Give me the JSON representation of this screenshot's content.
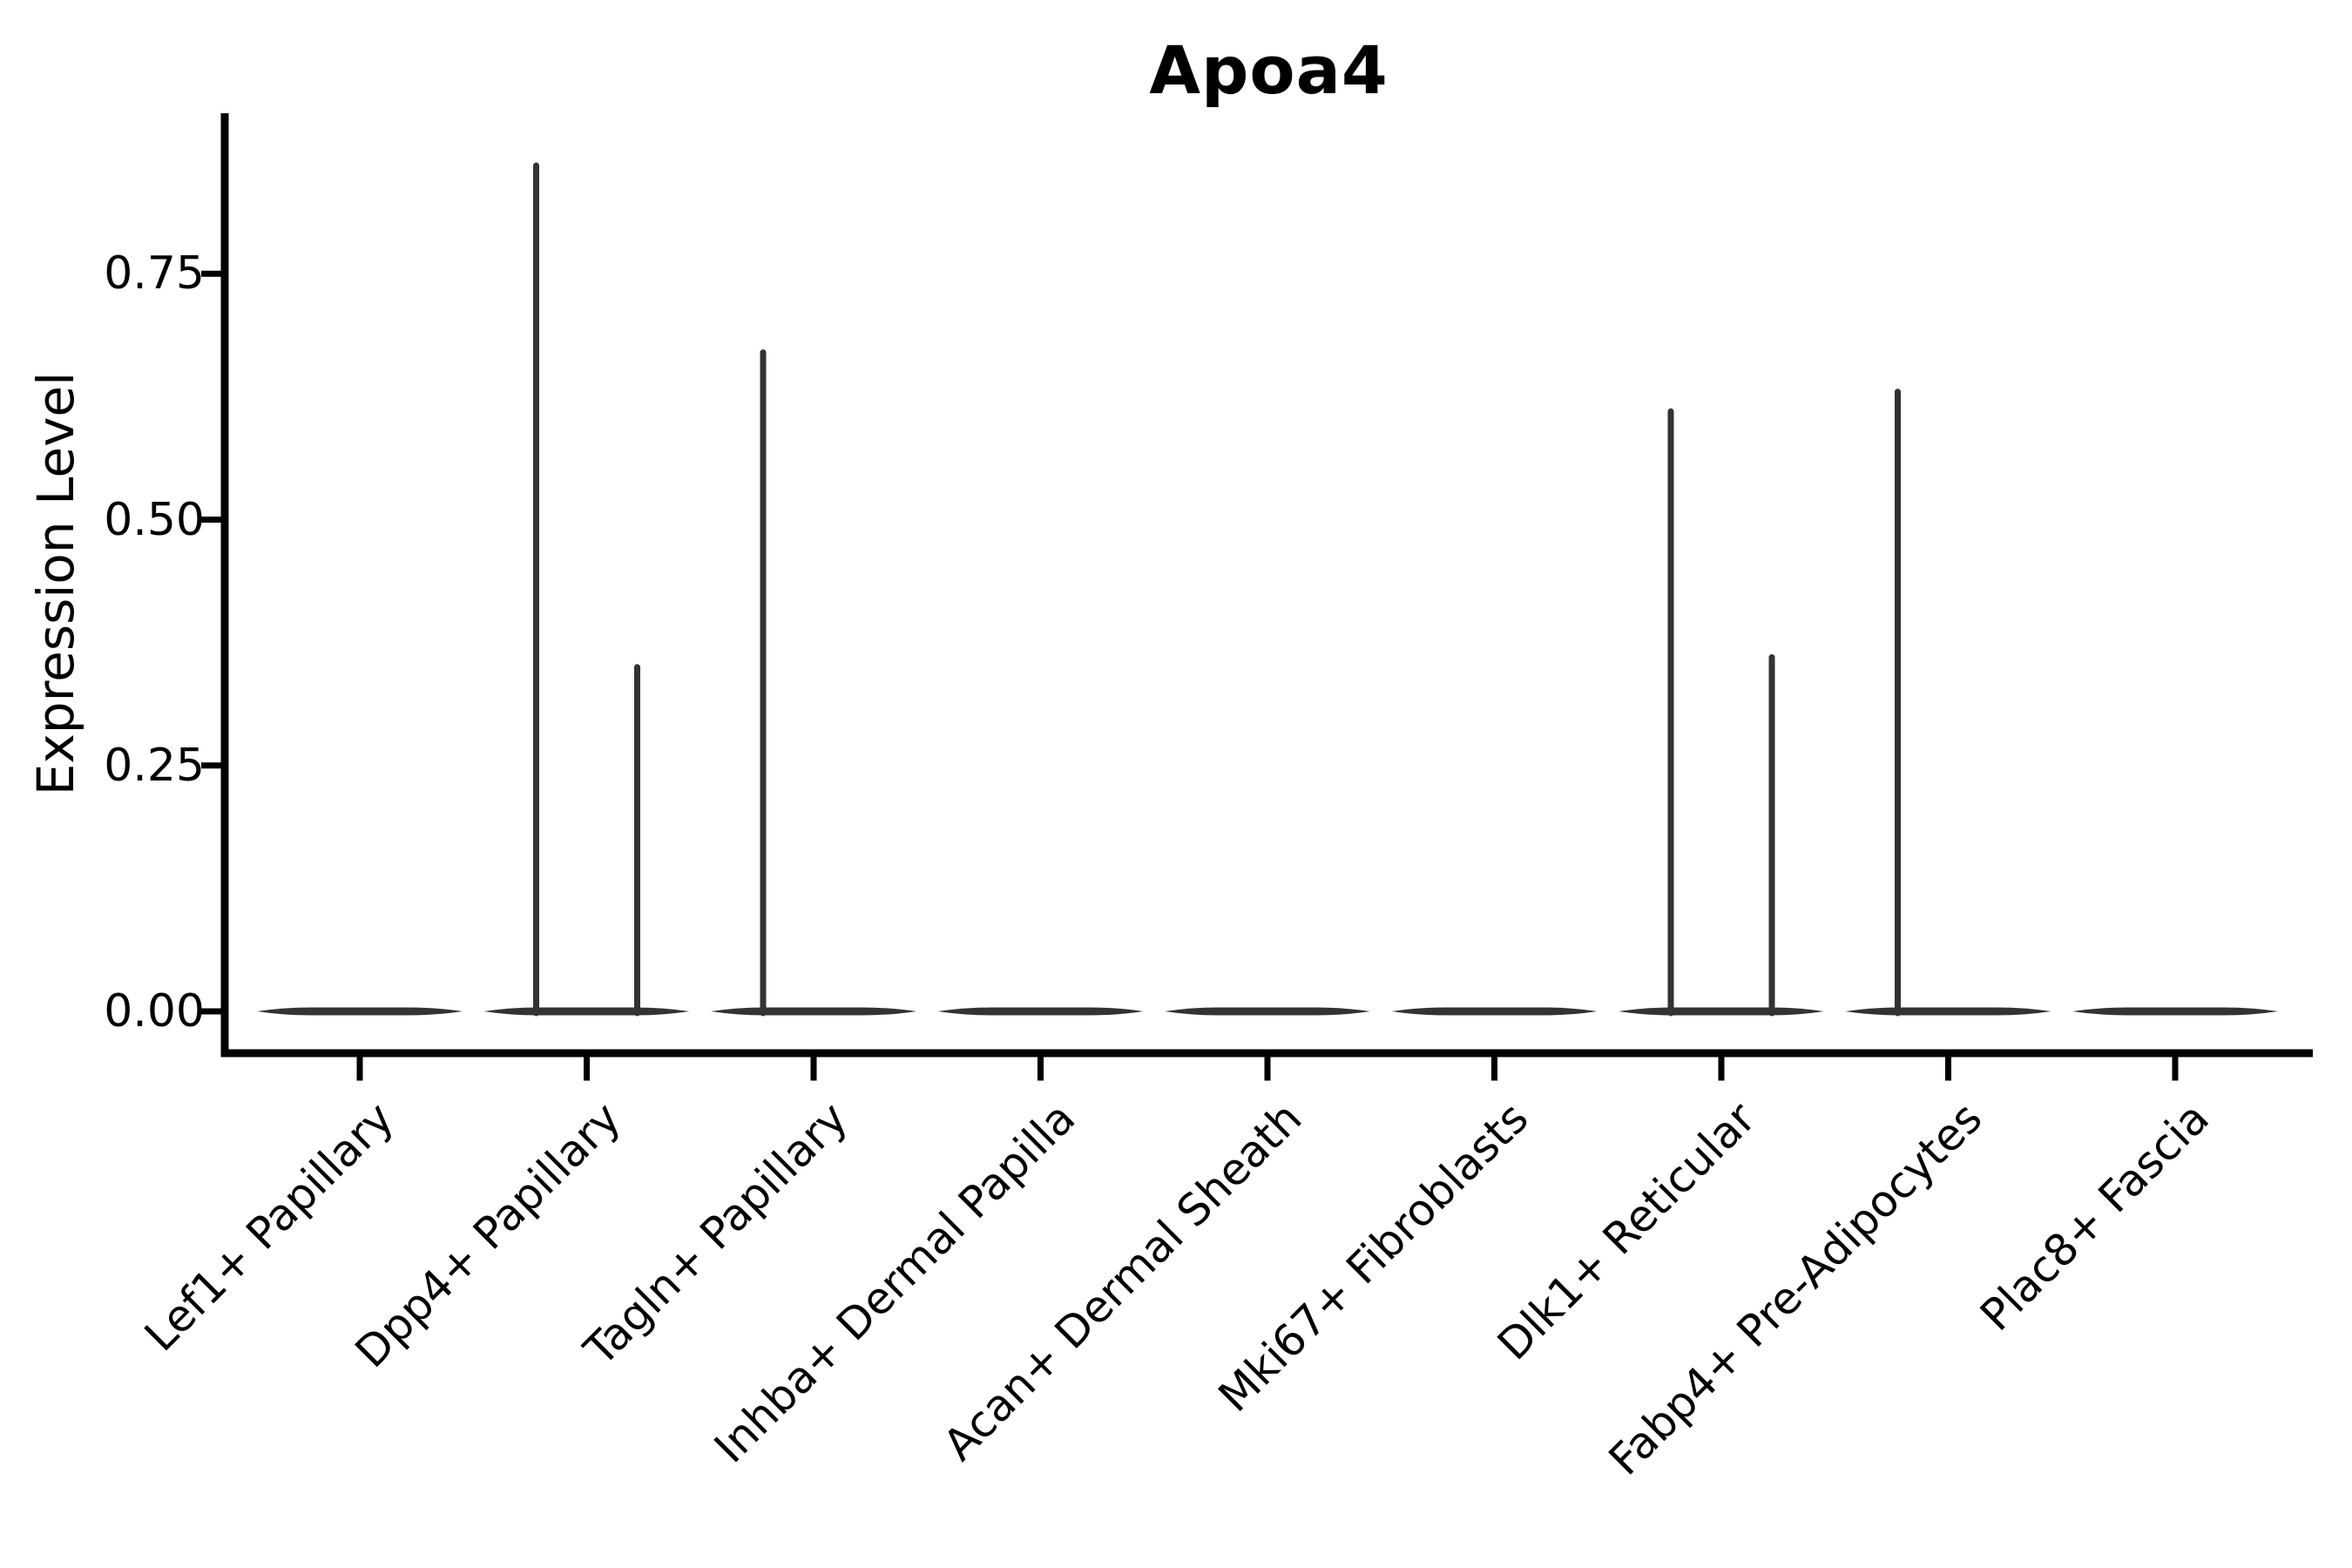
{
  "chart_data": {
    "type": "violin",
    "title": "Apoa4",
    "ylabel": "Expression Level",
    "xlabel": "",
    "grid": false,
    "legend_position": "none",
    "background_color": "#ffffff",
    "axis_color": "#000000",
    "violin_color": "#333333",
    "ylim": [
      0,
      0.91
    ],
    "yticks": [
      {
        "value": 0.0,
        "label": "0.00"
      },
      {
        "value": 0.25,
        "label": "0.25"
      },
      {
        "value": 0.5,
        "label": "0.50"
      },
      {
        "value": 0.75,
        "label": "0.75"
      }
    ],
    "categories": [
      "Lef1+ Papillary",
      "Dpp4+ Papillary",
      "Tagln+ Papillary",
      "Inhba+ Dermal Papilla",
      "Acan+ Dermal Sheath",
      "Mki67+ Fibroblasts",
      "Dlk1+ Reticular",
      "Fabp4+ Pre-Adipocytes",
      "Plac8+ Fascia"
    ],
    "series": [
      {
        "category": "Lef1+ Papillary",
        "baseline_value": 0,
        "spikes": []
      },
      {
        "category": "Dpp4+ Papillary",
        "baseline_value": 0,
        "spikes": [
          {
            "side": "left",
            "value": 0.86
          },
          {
            "side": "right",
            "value": 0.35
          }
        ]
      },
      {
        "category": "Tagln+ Papillary",
        "baseline_value": 0,
        "spikes": [
          {
            "side": "left",
            "value": 0.67
          }
        ]
      },
      {
        "category": "Inhba+ Dermal Papilla",
        "baseline_value": 0,
        "spikes": []
      },
      {
        "category": "Acan+ Dermal Sheath",
        "baseline_value": 0,
        "spikes": []
      },
      {
        "category": "Mki67+ Fibroblasts",
        "baseline_value": 0,
        "spikes": []
      },
      {
        "category": "Dlk1+ Reticular",
        "baseline_value": 0,
        "spikes": [
          {
            "side": "left",
            "value": 0.61
          },
          {
            "side": "right",
            "value": 0.36
          }
        ]
      },
      {
        "category": "Fabp4+ Pre-Adipocytes",
        "baseline_value": 0,
        "spikes": [
          {
            "side": "left",
            "value": 0.63
          }
        ]
      },
      {
        "category": "Plac8+ Fascia",
        "baseline_value": 0,
        "spikes": []
      }
    ]
  }
}
